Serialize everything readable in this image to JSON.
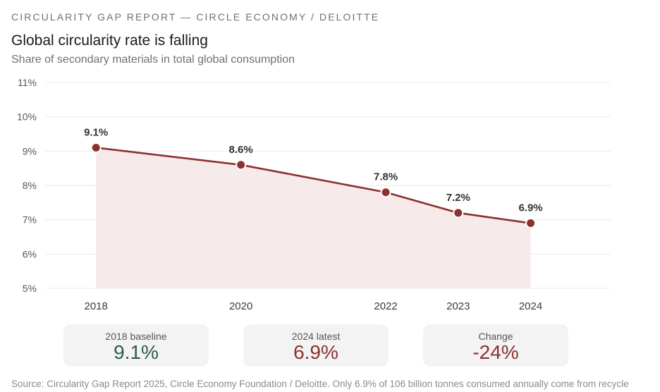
{
  "header": {
    "kicker": "CIRCULARITY GAP REPORT — CIRCLE ECONOMY / DELOITTE",
    "title": "Global circularity rate is falling",
    "subtitle": "Share of secondary materials in total global consumption"
  },
  "chart_data": {
    "type": "line",
    "x": [
      2018,
      2020,
      2022,
      2023,
      2024
    ],
    "values": [
      9.1,
      8.6,
      7.8,
      7.2,
      6.9
    ],
    "data_labels": [
      "9.1%",
      "8.6%",
      "7.8%",
      "7.2%",
      "6.9%"
    ],
    "x_tick_labels": [
      "2018",
      "2020",
      "2022",
      "2023",
      "2024"
    ],
    "y_ticks": [
      5,
      6,
      7,
      8,
      9,
      10,
      11
    ],
    "y_tick_labels": [
      "5%",
      "6%",
      "7%",
      "8%",
      "9%",
      "10%",
      "11%"
    ],
    "ylim": [
      5,
      11
    ],
    "xlim": [
      2017.2,
      2024.9
    ],
    "grid": true,
    "area_fill": true,
    "colors": {
      "line": "#8e3030",
      "area": "#f7eaea",
      "grid": "#ebebeb",
      "marker_stroke": "#ffffff"
    }
  },
  "stats": [
    {
      "label": "2018 baseline",
      "value": "9.1%",
      "color": "#2e5e45"
    },
    {
      "label": "2024 latest",
      "value": "6.9%",
      "color": "#8e3030"
    },
    {
      "label": "Change",
      "value": "-24%",
      "color": "#8e3030"
    }
  ],
  "footer": {
    "source": "Source: Circularity Gap Report 2025, Circle Economy Foundation / Deloitte. Only 6.9% of 106 billion tonnes consumed annually come from recycle"
  }
}
